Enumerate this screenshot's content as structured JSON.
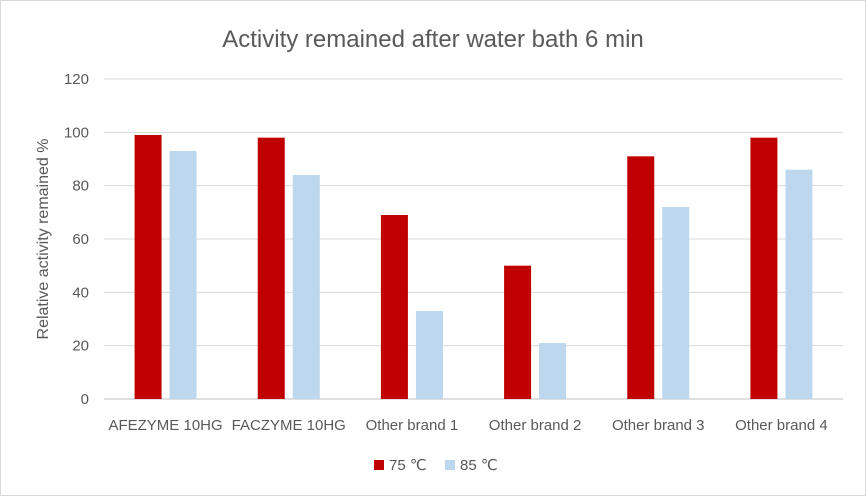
{
  "chart_data": {
    "type": "bar",
    "title": "Activity remained after water bath 6 min",
    "ylabel": "Relative activity remained %",
    "xlabel": "",
    "ylim": [
      0,
      120
    ],
    "yticks": [
      0,
      20,
      40,
      60,
      80,
      100,
      120
    ],
    "grid": true,
    "legend_position": "bottom",
    "categories": [
      "AFEZYME 10HG",
      "FACZYME 10HG",
      "Other brand 1",
      "Other brand 2",
      "Other brand 3",
      "Other brand 4"
    ],
    "series": [
      {
        "name": "75 ℃",
        "color": "#c00000",
        "values": [
          99,
          98,
          69,
          50,
          91,
          98
        ]
      },
      {
        "name": "85 ℃",
        "color": "#bdd7ee",
        "values": [
          93,
          84,
          33,
          21,
          72,
          86
        ]
      }
    ]
  }
}
